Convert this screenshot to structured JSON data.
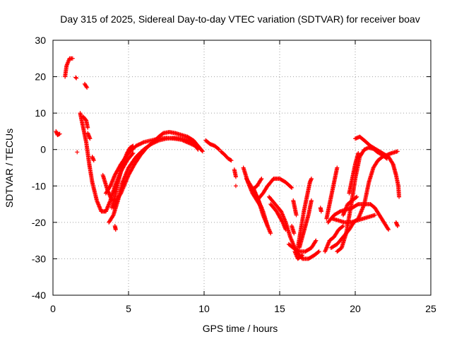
{
  "chart_data": {
    "type": "scatter",
    "title": "Day 315 of 2025, Sidereal Day-to-day VTEC variation (SDTVAR) for receiver boav",
    "xlabel": "GPS time / hours",
    "ylabel": "SDTVAR / TECUs",
    "xlim": [
      0,
      25
    ],
    "ylim": [
      -40,
      30
    ],
    "xticks": [
      0,
      5,
      10,
      15,
      20,
      25
    ],
    "yticks": [
      -40,
      -30,
      -20,
      -10,
      0,
      10,
      20,
      30
    ],
    "grid": true,
    "marker": "+",
    "color": "#ff0000",
    "tracks": [
      {
        "name": "arc-1",
        "points": [
          [
            0.2,
            5
          ],
          [
            0.3,
            4
          ],
          [
            0.45,
            4.3
          ]
        ]
      },
      {
        "name": "arc-2",
        "points": [
          [
            0.8,
            20
          ],
          [
            0.9,
            23
          ],
          [
            1.1,
            25
          ],
          [
            1.3,
            25
          ]
        ]
      },
      {
        "name": "arc-3",
        "points": [
          [
            1.5,
            19.8
          ],
          [
            1.55,
            19.6
          ]
        ]
      },
      {
        "name": "arc-4",
        "points": [
          [
            2.1,
            18
          ],
          [
            2.25,
            17
          ]
        ]
      },
      {
        "name": "arc-5",
        "points": [
          [
            1.6,
            -0.7
          ]
        ]
      },
      {
        "name": "arc-6",
        "points": [
          [
            1.8,
            10
          ],
          [
            2.0,
            6
          ],
          [
            2.2,
            2
          ],
          [
            2.4,
            -4
          ],
          [
            2.6,
            -9
          ],
          [
            2.9,
            -14
          ],
          [
            3.2,
            -17
          ],
          [
            3.5,
            -17
          ],
          [
            3.8,
            -14
          ],
          [
            4.1,
            -10
          ],
          [
            4.5,
            -6
          ],
          [
            4.9,
            -3
          ],
          [
            5.3,
            -1
          ]
        ]
      },
      {
        "name": "arc-7",
        "points": [
          [
            2.0,
            9
          ],
          [
            2.2,
            8
          ],
          [
            2.3,
            6
          ]
        ]
      },
      {
        "name": "arc-8",
        "points": [
          [
            2.3,
            4.5
          ],
          [
            2.45,
            3
          ]
        ]
      },
      {
        "name": "arc-9",
        "points": [
          [
            2.6,
            -2
          ],
          [
            2.7,
            -3
          ]
        ]
      },
      {
        "name": "arc-10",
        "points": [
          [
            3.3,
            -7
          ],
          [
            3.6,
            -11
          ],
          [
            3.9,
            -14
          ]
        ]
      },
      {
        "name": "arc-11",
        "points": [
          [
            3.5,
            -12
          ],
          [
            3.8,
            -10
          ],
          [
            4.1,
            -7
          ],
          [
            4.5,
            -4
          ],
          [
            5.0,
            -1
          ],
          [
            5.5,
            1
          ],
          [
            6.0,
            2
          ],
          [
            6.5,
            2.5
          ],
          [
            7.0,
            3
          ],
          [
            7.5,
            3.2
          ],
          [
            8.0,
            3
          ],
          [
            8.5,
            2.7
          ],
          [
            9.0,
            1.8
          ],
          [
            9.4,
            1
          ]
        ]
      },
      {
        "name": "arc-12",
        "points": [
          [
            3.7,
            -20
          ],
          [
            4.0,
            -18
          ],
          [
            4.3,
            -14
          ],
          [
            4.6,
            -9
          ],
          [
            5.0,
            -5
          ],
          [
            5.5,
            -2
          ],
          [
            6.0,
            0
          ],
          [
            6.5,
            1.5
          ],
          [
            7.0,
            2.5
          ],
          [
            7.5,
            3
          ],
          [
            8.0,
            3.2
          ],
          [
            8.5,
            3
          ],
          [
            9.0,
            2.5
          ],
          [
            9.3,
            1.8
          ],
          [
            9.6,
            0
          ]
        ]
      },
      {
        "name": "arc-13",
        "points": [
          [
            4.0,
            -16
          ],
          [
            4.2,
            -14
          ],
          [
            4.5,
            -12
          ],
          [
            4.7,
            -10
          ],
          [
            5.0,
            -7
          ],
          [
            5.4,
            -4
          ],
          [
            5.8,
            -1.5
          ],
          [
            6.2,
            0.5
          ],
          [
            6.6,
            2
          ],
          [
            7.0,
            3.5
          ],
          [
            7.3,
            4.5
          ],
          [
            7.7,
            4.8
          ],
          [
            8.1,
            4.5
          ],
          [
            8.5,
            4
          ],
          [
            8.9,
            3.5
          ],
          [
            9.3,
            2.5
          ],
          [
            9.7,
            0.5
          ],
          [
            9.9,
            -0.5
          ]
        ]
      },
      {
        "name": "arc-14",
        "points": [
          [
            4.1,
            -21
          ],
          [
            4.15,
            -22
          ]
        ]
      },
      {
        "name": "arc-15",
        "points": [
          [
            3.9,
            -16
          ],
          [
            4.1,
            -13
          ],
          [
            4.3,
            -9
          ],
          [
            4.5,
            -6
          ],
          [
            4.7,
            -3
          ],
          [
            4.9,
            -1
          ],
          [
            5.1,
            0.5
          ],
          [
            5.3,
            1
          ]
        ]
      },
      {
        "name": "arc-16",
        "points": [
          [
            10.1,
            2.5
          ],
          [
            10.4,
            1.5
          ],
          [
            10.7,
            1
          ],
          [
            11.0,
            0
          ]
        ]
      },
      {
        "name": "arc-17",
        "points": [
          [
            11.1,
            -0.5
          ],
          [
            11.3,
            -1.2
          ],
          [
            11.6,
            -2.5
          ],
          [
            11.8,
            -3
          ]
        ]
      },
      {
        "name": "arc-18",
        "points": [
          [
            12.0,
            -5.5
          ],
          [
            12.1,
            -7.5
          ]
        ]
      },
      {
        "name": "arc-19",
        "points": [
          [
            12.1,
            -10
          ]
        ]
      },
      {
        "name": "arc-20",
        "points": [
          [
            12.6,
            -5
          ],
          [
            12.9,
            -9
          ],
          [
            13.2,
            -12
          ],
          [
            13.5,
            -14
          ],
          [
            13.8,
            -16
          ]
        ]
      },
      {
        "name": "arc-21",
        "points": [
          [
            12.8,
            -8
          ],
          [
            13.1,
            -10
          ],
          [
            13.5,
            -13
          ],
          [
            13.9,
            -17
          ],
          [
            14.2,
            -21
          ],
          [
            14.4,
            -23
          ]
        ]
      },
      {
        "name": "arc-22",
        "points": [
          [
            13.3,
            -11
          ],
          [
            13.6,
            -14
          ],
          [
            13.9,
            -18
          ],
          [
            14.2,
            -21
          ]
        ]
      },
      {
        "name": "arc-23",
        "points": [
          [
            13.2,
            -11
          ],
          [
            13.5,
            -10
          ],
          [
            13.8,
            -8
          ]
        ]
      },
      {
        "name": "arc-24",
        "points": [
          [
            13.5,
            -14
          ],
          [
            13.9,
            -12
          ],
          [
            14.2,
            -10
          ],
          [
            14.6,
            -8
          ],
          [
            15.0,
            -8
          ],
          [
            15.4,
            -9
          ],
          [
            15.8,
            -10.5
          ]
        ]
      },
      {
        "name": "arc-25",
        "points": [
          [
            14.4,
            -15
          ],
          [
            14.8,
            -17
          ],
          [
            15.2,
            -20
          ],
          [
            15.4,
            -22
          ]
        ]
      },
      {
        "name": "arc-26",
        "points": [
          [
            14.3,
            -13
          ],
          [
            14.7,
            -15
          ],
          [
            15.1,
            -17
          ],
          [
            15.4,
            -20
          ],
          [
            15.7,
            -24
          ],
          [
            15.9,
            -26
          ],
          [
            16.1,
            -28
          ],
          [
            16.5,
            -30
          ],
          [
            16.9,
            -30
          ],
          [
            17.3,
            -29
          ],
          [
            17.6,
            -28
          ]
        ]
      },
      {
        "name": "arc-27",
        "points": [
          [
            15.8,
            -21
          ],
          [
            15.95,
            -23
          ]
        ]
      },
      {
        "name": "arc-28",
        "points": [
          [
            15.6,
            -26
          ],
          [
            15.9,
            -27
          ],
          [
            16.3,
            -28
          ],
          [
            16.7,
            -28
          ],
          [
            17.1,
            -27
          ],
          [
            17.4,
            -25
          ]
        ]
      },
      {
        "name": "arc-29",
        "points": [
          [
            15.9,
            -14
          ],
          [
            16.0,
            -16
          ],
          [
            16.1,
            -18
          ]
        ]
      },
      {
        "name": "arc-30",
        "points": [
          [
            16.2,
            -27
          ],
          [
            16.4,
            -22
          ],
          [
            16.6,
            -17
          ],
          [
            16.8,
            -13
          ],
          [
            17.0,
            -9
          ],
          [
            17.1,
            -8
          ]
        ]
      },
      {
        "name": "arc-31",
        "points": [
          [
            16.3,
            -27
          ],
          [
            16.5,
            -24
          ],
          [
            16.7,
            -21
          ],
          [
            16.9,
            -18
          ],
          [
            17.0,
            -16
          ],
          [
            17.1,
            -14
          ]
        ]
      },
      {
        "name": "arc-32",
        "points": [
          [
            16.0,
            -28
          ],
          [
            16.2,
            -30
          ],
          [
            16.5,
            -29
          ]
        ]
      },
      {
        "name": "arc-33",
        "points": [
          [
            17.7,
            -16
          ],
          [
            17.75,
            -17
          ]
        ]
      },
      {
        "name": "arc-34",
        "points": [
          [
            18.1,
            -19
          ],
          [
            18.3,
            -15
          ],
          [
            18.5,
            -11
          ],
          [
            18.7,
            -7
          ],
          [
            18.8,
            -5
          ]
        ]
      },
      {
        "name": "arc-35",
        "points": [
          [
            18.0,
            -28
          ],
          [
            18.3,
            -25
          ],
          [
            18.6,
            -24
          ],
          [
            18.9,
            -22
          ],
          [
            19.2,
            -21
          ]
        ]
      },
      {
        "name": "arc-36",
        "points": [
          [
            18.4,
            -27
          ],
          [
            18.8,
            -26
          ],
          [
            19.2,
            -24
          ],
          [
            19.6,
            -22
          ],
          [
            19.9,
            -20
          ],
          [
            20.2,
            -19
          ],
          [
            20.6,
            -15
          ],
          [
            20.9,
            -9
          ],
          [
            21.2,
            -5
          ],
          [
            21.5,
            -3
          ],
          [
            21.8,
            -2
          ],
          [
            22.1,
            -1.5
          ],
          [
            22.4,
            -1
          ],
          [
            22.8,
            -0.5
          ]
        ]
      },
      {
        "name": "arc-37",
        "points": [
          [
            18.8,
            -28
          ],
          [
            19.1,
            -27
          ],
          [
            19.4,
            -23
          ],
          [
            19.7,
            -16
          ],
          [
            20.0,
            -8
          ],
          [
            20.3,
            -2
          ],
          [
            20.6,
            0
          ],
          [
            20.9,
            0.5
          ],
          [
            21.2,
            0.2
          ],
          [
            21.5,
            -0.8
          ],
          [
            21.8,
            -1.5
          ],
          [
            22.1,
            -2.5
          ]
        ]
      },
      {
        "name": "arc-38",
        "points": [
          [
            18.2,
            -20
          ],
          [
            18.6,
            -18
          ],
          [
            19.0,
            -17
          ],
          [
            19.4,
            -16.5
          ],
          [
            19.8,
            -16
          ],
          [
            20.2,
            -15
          ],
          [
            20.6,
            -15
          ],
          [
            21.0,
            -15
          ],
          [
            21.3,
            -16
          ],
          [
            21.6,
            -18
          ],
          [
            21.9,
            -20
          ],
          [
            22.2,
            -22
          ]
        ]
      },
      {
        "name": "arc-39",
        "points": [
          [
            18.5,
            -19
          ],
          [
            18.9,
            -19.5
          ],
          [
            19.3,
            -20
          ],
          [
            19.7,
            -20
          ],
          [
            20.1,
            -19.5
          ],
          [
            20.5,
            -19
          ],
          [
            20.9,
            -18.5
          ],
          [
            21.3,
            -18
          ]
        ]
      },
      {
        "name": "arc-40",
        "points": [
          [
            19.2,
            -18
          ],
          [
            19.5,
            -15
          ],
          [
            19.8,
            -14
          ],
          [
            20.1,
            -13
          ]
        ]
      },
      {
        "name": "arc-41",
        "points": [
          [
            19.6,
            -12
          ],
          [
            19.8,
            -8
          ],
          [
            20.0,
            -4
          ],
          [
            20.2,
            -1
          ]
        ]
      },
      {
        "name": "arc-42",
        "points": [
          [
            20.0,
            3
          ],
          [
            20.3,
            3.5
          ],
          [
            20.6,
            2.5
          ],
          [
            21.0,
            1
          ],
          [
            21.4,
            0
          ],
          [
            21.8,
            -1
          ],
          [
            22.2,
            -2
          ],
          [
            22.5,
            -4
          ],
          [
            22.7,
            -7
          ],
          [
            22.85,
            -10
          ],
          [
            22.9,
            -13
          ]
        ]
      },
      {
        "name": "arc-43",
        "points": [
          [
            22.7,
            -20
          ],
          [
            22.8,
            -21
          ]
        ]
      }
    ]
  }
}
